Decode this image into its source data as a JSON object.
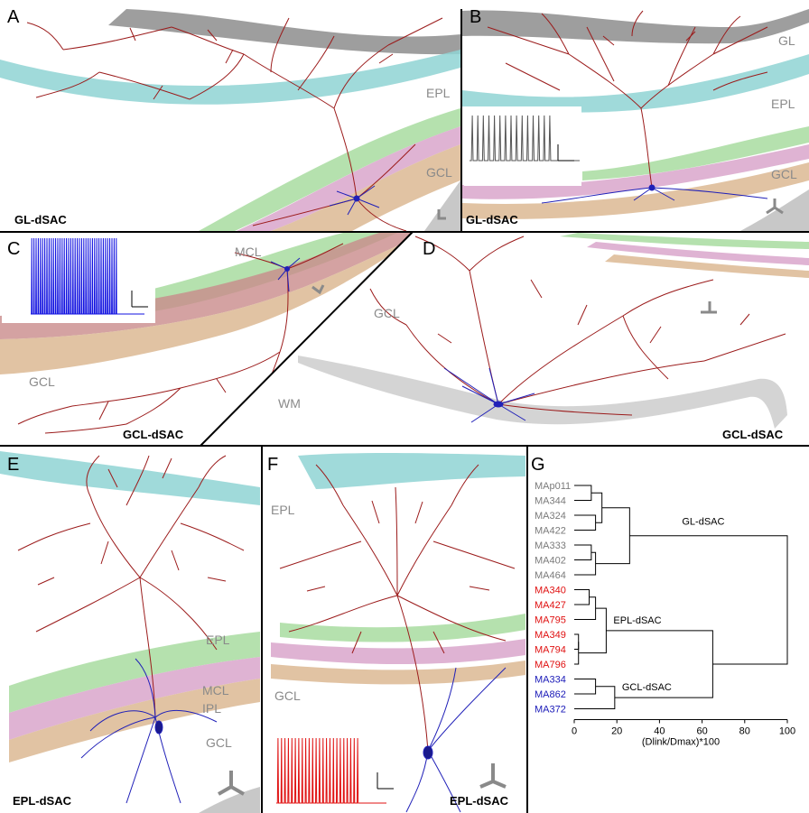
{
  "panels": {
    "A": {
      "letter": "A",
      "caption": "GL-dSAC",
      "layers": [
        "EPL",
        "GCL"
      ]
    },
    "B": {
      "letter": "B",
      "caption": "GL-dSAC",
      "layers": [
        "GL",
        "EPL",
        "GCL"
      ]
    },
    "C": {
      "letter": "C",
      "caption": "GCL-dSAC",
      "layers": [
        "MCL",
        "GCL"
      ]
    },
    "D": {
      "letter": "D",
      "caption": "GCL-dSAC",
      "layers": [
        "GCL",
        "WM"
      ]
    },
    "E": {
      "letter": "E",
      "caption": "EPL-dSAC",
      "layers": [
        "EPL",
        "MCL",
        "IPL",
        "GCL"
      ]
    },
    "F": {
      "letter": "F",
      "caption": "EPL-dSAC",
      "layers": [
        "EPL",
        "GCL"
      ]
    },
    "G": {
      "letter": "G"
    }
  },
  "colors": {
    "dendrite": "#9b1b1b",
    "soma": "#2020b8",
    "GL": "#9e9e9e",
    "EPL": "#8fd3d3",
    "MCL": "#a8dca0",
    "IPL": "#d7a0c8",
    "GCL": "#d9b48c",
    "WM": "#cccccc",
    "GL-dSAC": "#7a7a7a",
    "EPL-dSAC": "#e01010",
    "GCL-dSAC": "#1a1ab8"
  },
  "chart_data": {
    "type": "dendrogram",
    "leaves": [
      {
        "label": "MAp011",
        "group": "GL-dSAC"
      },
      {
        "label": "MA344",
        "group": "GL-dSAC"
      },
      {
        "label": "MA324",
        "group": "GL-dSAC"
      },
      {
        "label": "MA422",
        "group": "GL-dSAC"
      },
      {
        "label": "MA333",
        "group": "GL-dSAC"
      },
      {
        "label": "MA402",
        "group": "GL-dSAC"
      },
      {
        "label": "MA464",
        "group": "GL-dSAC"
      },
      {
        "label": "MA340",
        "group": "EPL-dSAC"
      },
      {
        "label": "MA427",
        "group": "EPL-dSAC"
      },
      {
        "label": "MA795",
        "group": "EPL-dSAC"
      },
      {
        "label": "MA349",
        "group": "EPL-dSAC"
      },
      {
        "label": "MA794",
        "group": "EPL-dSAC"
      },
      {
        "label": "MA796",
        "group": "EPL-dSAC"
      },
      {
        "label": "MA334",
        "group": "GCL-dSAC"
      },
      {
        "label": "MA862",
        "group": "GCL-dSAC"
      },
      {
        "label": "MA372",
        "group": "GCL-dSAC"
      }
    ],
    "merges": [
      {
        "a": "L0",
        "b": "L1",
        "h": 8
      },
      {
        "a": "L2",
        "b": "L3",
        "h": 10
      },
      {
        "a": "N0",
        "b": "N1",
        "h": 13
      },
      {
        "a": "L4",
        "b": "L5",
        "h": 8
      },
      {
        "a": "N3",
        "b": "L6",
        "h": 10
      },
      {
        "a": "N2",
        "b": "N4",
        "h": 26
      },
      {
        "a": "L7",
        "b": "L8",
        "h": 7
      },
      {
        "a": "N6",
        "b": "L9",
        "h": 10
      },
      {
        "a": "L10",
        "b": "L11",
        "h": 2
      },
      {
        "a": "N8",
        "b": "L12",
        "h": 2
      },
      {
        "a": "N7",
        "b": "N9",
        "h": 15
      },
      {
        "a": "L13",
        "b": "L14",
        "h": 10
      },
      {
        "a": "N11",
        "b": "L15",
        "h": 19
      },
      {
        "a": "N10",
        "b": "N12",
        "h": 65
      },
      {
        "a": "N5",
        "b": "N13",
        "h": 100
      }
    ],
    "cluster_labels": [
      "GL-dSAC",
      "EPL-dSAC",
      "GCL-dSAC"
    ],
    "x_ticks": [
      0,
      20,
      40,
      60,
      80,
      100
    ],
    "xlim": [
      0,
      100
    ],
    "xlabel": "(Dlink/Dmax)*100"
  }
}
